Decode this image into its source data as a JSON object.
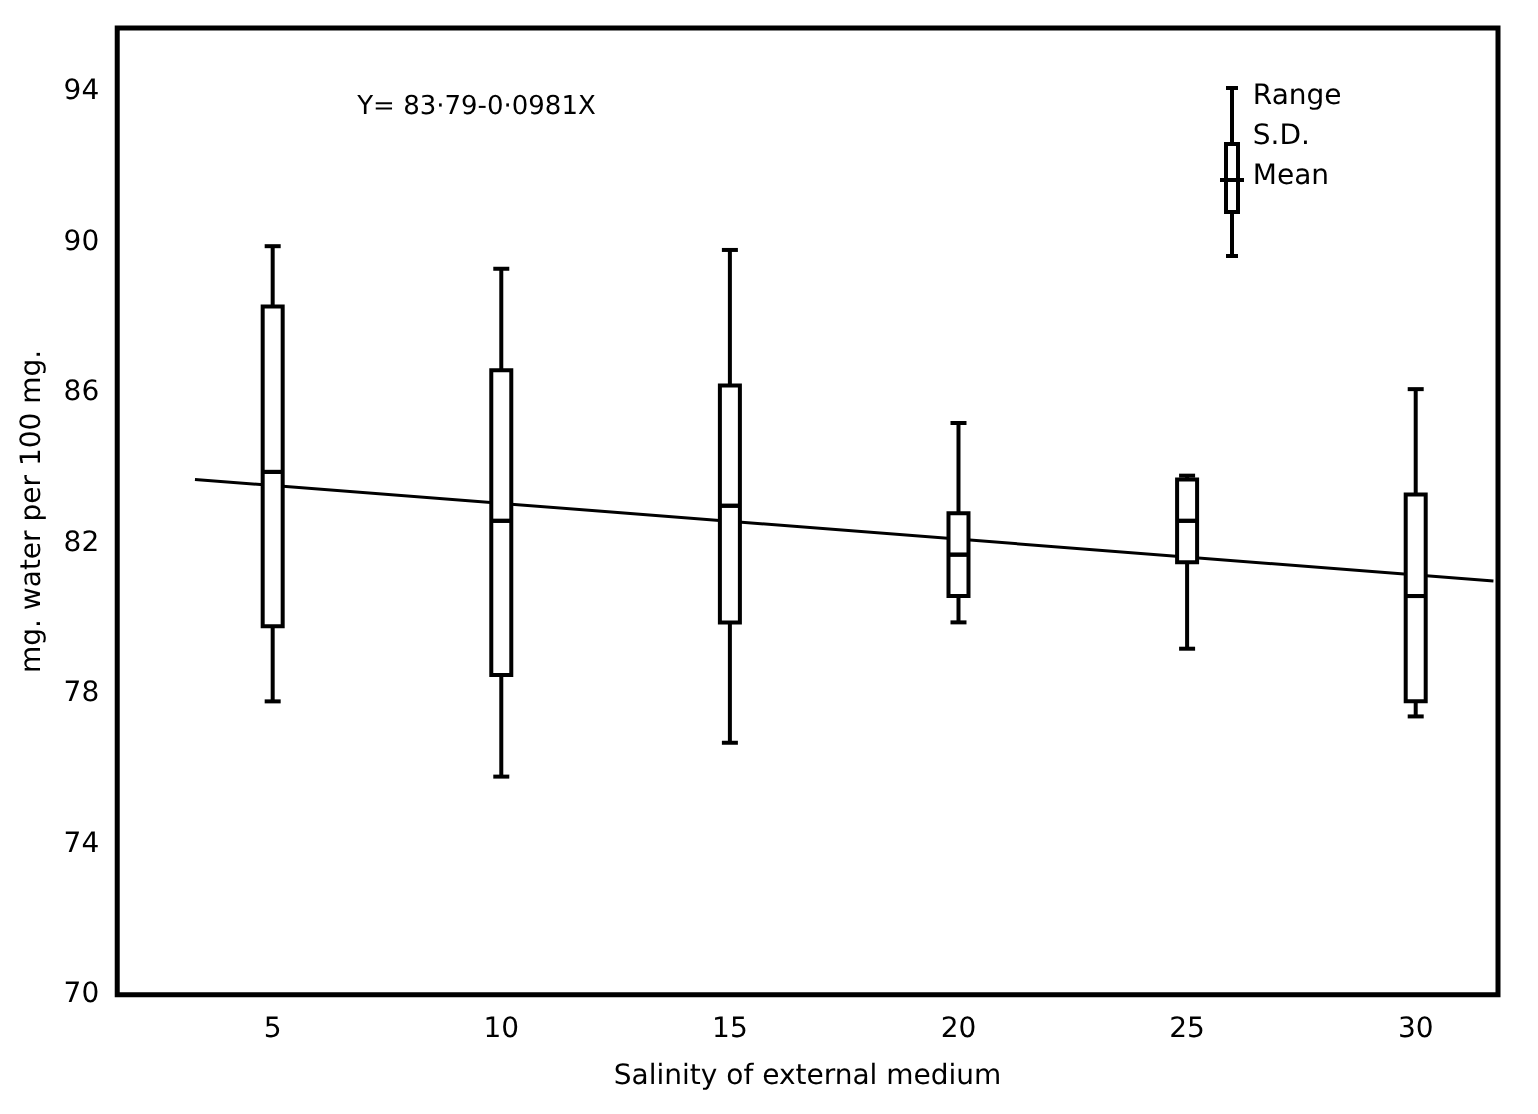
{
  "chart_data": {
    "type": "box",
    "xlabel": "Salinity of external medium",
    "ylabel": "mg. water per 100 mg.",
    "x": [
      5,
      10,
      15,
      20,
      25,
      30
    ],
    "boxes": [
      {
        "low": 77.8,
        "q1": 79.8,
        "median": 83.9,
        "q3": 88.3,
        "high": 89.9,
        "mean": 83.9
      },
      {
        "low": 75.8,
        "q1": 78.5,
        "median": 82.6,
        "q3": 86.6,
        "high": 89.3,
        "mean": 82.6
      },
      {
        "low": 76.7,
        "q1": 79.9,
        "median": 83.0,
        "q3": 86.2,
        "high": 89.8,
        "mean": 83.0
      },
      {
        "low": 79.9,
        "q1": 80.6,
        "median": 81.7,
        "q3": 82.8,
        "high": 85.2,
        "mean": 81.7
      },
      {
        "low": 79.2,
        "q1": 81.5,
        "median": 82.6,
        "q3": 83.7,
        "high": 83.8,
        "mean": 82.6
      },
      {
        "low": 77.4,
        "q1": 77.8,
        "median": 80.6,
        "q3": 83.3,
        "high": 86.1,
        "mean": 80.6
      }
    ],
    "series": [
      {
        "type": "line",
        "x": [
          3.3,
          31.7
        ],
        "values": [
          83.7,
          81.0
        ],
        "color": "#000000"
      }
    ],
    "xlim": [
      1.6,
      31.8
    ],
    "xticks": [
      5,
      10,
      15,
      20,
      25,
      30
    ],
    "ylim": [
      70,
      95.7
    ],
    "yticks": [
      70,
      74,
      78,
      82,
      86,
      90,
      94
    ],
    "grid": false,
    "legend": false,
    "annotations": [
      "Y= 83·79-0·0981X",
      "Range",
      "S.D.",
      "Mean"
    ]
  }
}
